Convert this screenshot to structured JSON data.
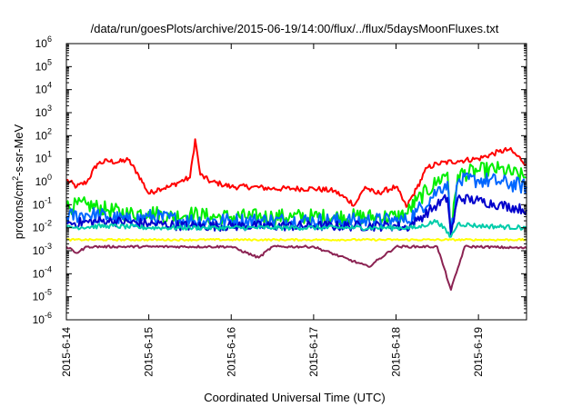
{
  "chart_data": {
    "type": "line",
    "title": "/data/run/goesPlots/archive/2015-06-19/14:00/flux/../flux/5daysMoonFluxes.txt",
    "xlabel": "Coordinated Universal Time (UTC)",
    "ylabel": "protons/cm²-s-sr-MeV",
    "ylabel_parts": {
      "pre": "protons/cm",
      "sup": "2",
      "post": "-s-sr-MeV"
    },
    "yscale": "log",
    "ylim": [
      1e-06,
      1000000.0
    ],
    "yticks": [
      {
        "base": "10",
        "exp": "-6"
      },
      {
        "base": "10",
        "exp": "-5"
      },
      {
        "base": "10",
        "exp": "-4"
      },
      {
        "base": "10",
        "exp": "-3"
      },
      {
        "base": "10",
        "exp": "-2"
      },
      {
        "base": "10",
        "exp": "-1"
      },
      {
        "base": "10",
        "exp": "0"
      },
      {
        "base": "10",
        "exp": "1"
      },
      {
        "base": "10",
        "exp": "2"
      },
      {
        "base": "10",
        "exp": "3"
      },
      {
        "base": "10",
        "exp": "4"
      },
      {
        "base": "10",
        "exp": "5"
      },
      {
        "base": "10",
        "exp": "6"
      }
    ],
    "xlim": [
      "2015-06-14",
      "2015-06-19T14:00"
    ],
    "xticks": [
      "2015-6-14",
      "2015-6-15",
      "2015-6-16",
      "2015-6-17",
      "2015-6-18",
      "2015-6-19"
    ],
    "grid": false,
    "legend": "none",
    "series": [
      {
        "color": "#ff0000",
        "x": [
          "2015-06-14T00:00",
          "2015-06-14T03:00",
          "2015-06-14T06:00",
          "2015-06-14T09:00",
          "2015-06-14T12:00",
          "2015-06-14T15:00",
          "2015-06-14T18:00",
          "2015-06-14T21:00",
          "2015-06-15T00:00",
          "2015-06-15T03:00",
          "2015-06-15T06:00",
          "2015-06-15T09:00",
          "2015-06-15T12:00",
          "2015-06-15T13:30",
          "2015-06-15T15:00",
          "2015-06-15T18:00",
          "2015-06-15T21:00",
          "2015-06-16T00:00",
          "2015-06-16T06:00",
          "2015-06-16T12:00",
          "2015-06-16T18:00",
          "2015-06-17T00:00",
          "2015-06-17T06:00",
          "2015-06-17T12:00",
          "2015-06-17T15:00",
          "2015-06-17T18:00",
          "2015-06-18T00:00",
          "2015-06-18T03:00",
          "2015-06-18T06:00",
          "2015-06-18T09:00",
          "2015-06-18T12:00",
          "2015-06-18T18:00",
          "2015-06-19T00:00",
          "2015-06-19T06:00",
          "2015-06-19T09:00",
          "2015-06-19T14:00"
        ],
        "y": [
          1.2,
          0.6,
          1.0,
          6.0,
          8.0,
          7.0,
          9.0,
          2.0,
          0.3,
          0.5,
          0.6,
          1.0,
          1.5,
          70.0,
          2.0,
          1.0,
          0.8,
          0.6,
          0.6,
          0.5,
          0.5,
          0.5,
          0.4,
          0.1,
          0.6,
          0.3,
          0.6,
          0.08,
          0.5,
          4.0,
          6.0,
          8.0,
          10.0,
          20.0,
          25.0,
          6.0
        ]
      },
      {
        "color": "#00ee00",
        "x": [
          "2015-06-14T00:00",
          "2015-06-14T06:00",
          "2015-06-14T12:00",
          "2015-06-14T18:00",
          "2015-06-15T00:00",
          "2015-06-15T06:00",
          "2015-06-15T12:00",
          "2015-06-15T18:00",
          "2015-06-16T00:00",
          "2015-06-16T06:00",
          "2015-06-16T12:00",
          "2015-06-16T18:00",
          "2015-06-17T00:00",
          "2015-06-17T06:00",
          "2015-06-17T12:00",
          "2015-06-17T18:00",
          "2015-06-18T00:00",
          "2015-06-18T03:00",
          "2015-06-18T06:00",
          "2015-06-18T12:00",
          "2015-06-18T15:00",
          "2015-06-18T16:00",
          "2015-06-18T18:00",
          "2015-06-19T00:00",
          "2015-06-19T06:00",
          "2015-06-19T14:00"
        ],
        "y": [
          0.08,
          0.1,
          0.06,
          0.04,
          0.05,
          0.03,
          0.04,
          0.03,
          0.03,
          0.03,
          0.03,
          0.03,
          0.03,
          0.03,
          0.03,
          0.03,
          0.03,
          0.04,
          0.15,
          1.0,
          2.5,
          0.005,
          2.0,
          3.0,
          3.5,
          1.5
        ]
      },
      {
        "color": "#0066ff",
        "x": [
          "2015-06-14T00:00",
          "2015-06-14T06:00",
          "2015-06-14T12:00",
          "2015-06-14T18:00",
          "2015-06-15T00:00",
          "2015-06-15T12:00",
          "2015-06-16T00:00",
          "2015-06-16T12:00",
          "2015-06-17T00:00",
          "2015-06-17T12:00",
          "2015-06-18T00:00",
          "2015-06-18T03:00",
          "2015-06-18T06:00",
          "2015-06-18T12:00",
          "2015-06-18T15:00",
          "2015-06-18T16:00",
          "2015-06-18T18:00",
          "2015-06-19T00:00",
          "2015-06-19T06:00",
          "2015-06-19T14:00"
        ],
        "y": [
          0.03,
          0.04,
          0.03,
          0.02,
          0.03,
          0.02,
          0.02,
          0.02,
          0.02,
          0.02,
          0.02,
          0.02,
          0.05,
          0.4,
          1.0,
          0.005,
          1.0,
          1.2,
          1.0,
          0.6
        ]
      },
      {
        "color": "#0000cc",
        "x": [
          "2015-06-14T00:00",
          "2015-06-14T12:00",
          "2015-06-15T00:00",
          "2015-06-15T12:00",
          "2015-06-16T00:00",
          "2015-06-16T12:00",
          "2015-06-17T00:00",
          "2015-06-17T12:00",
          "2015-06-18T00:00",
          "2015-06-18T03:00",
          "2015-06-18T06:00",
          "2015-06-18T12:00",
          "2015-06-18T15:00",
          "2015-06-18T16:00",
          "2015-06-18T18:00",
          "2015-06-19T00:00",
          "2015-06-19T06:00",
          "2015-06-19T14:00"
        ],
        "y": [
          0.015,
          0.02,
          0.015,
          0.012,
          0.012,
          0.012,
          0.012,
          0.012,
          0.012,
          0.01,
          0.02,
          0.1,
          0.2,
          0.005,
          0.2,
          0.15,
          0.1,
          0.06
        ]
      },
      {
        "color": "#00ccaa",
        "x": [
          "2015-06-14T00:00",
          "2015-06-14T12:00",
          "2015-06-15T00:00",
          "2015-06-15T12:00",
          "2015-06-16T00:00",
          "2015-06-16T12:00",
          "2015-06-17T00:00",
          "2015-06-17T12:00",
          "2015-06-18T00:00",
          "2015-06-18T06:00",
          "2015-06-18T12:00",
          "2015-06-18T16:00",
          "2015-06-18T18:00",
          "2015-06-19T00:00",
          "2015-06-19T14:00"
        ],
        "y": [
          0.01,
          0.012,
          0.01,
          0.01,
          0.01,
          0.01,
          0.01,
          0.01,
          0.01,
          0.01,
          0.02,
          0.004,
          0.015,
          0.012,
          0.01
        ]
      },
      {
        "color": "#ffff00",
        "x": [
          "2015-06-14T00:00",
          "2015-06-15T00:00",
          "2015-06-16T00:00",
          "2015-06-17T00:00",
          "2015-06-18T00:00",
          "2015-06-18T16:00",
          "2015-06-19T00:00",
          "2015-06-19T14:00"
        ],
        "y": [
          0.003,
          0.003,
          0.003,
          0.003,
          0.003,
          0.003,
          0.003,
          0.003
        ]
      },
      {
        "color": "#8b2252",
        "x": [
          "2015-06-14T00:00",
          "2015-06-14T03:00",
          "2015-06-14T06:00",
          "2015-06-15T00:00",
          "2015-06-16T00:00",
          "2015-06-16T08:00",
          "2015-06-16T12:00",
          "2015-06-17T00:00",
          "2015-06-17T16:00",
          "2015-06-18T00:00",
          "2015-06-18T12:00",
          "2015-06-18T16:00",
          "2015-06-18T20:00",
          "2015-06-19T00:00",
          "2015-06-19T14:00"
        ],
        "y": [
          0.0015,
          0.0008,
          0.0015,
          0.0015,
          0.0015,
          0.0005,
          0.0015,
          0.0015,
          0.0002,
          0.0015,
          0.0015,
          2e-05,
          0.0015,
          0.0015,
          0.0013
        ]
      }
    ]
  }
}
